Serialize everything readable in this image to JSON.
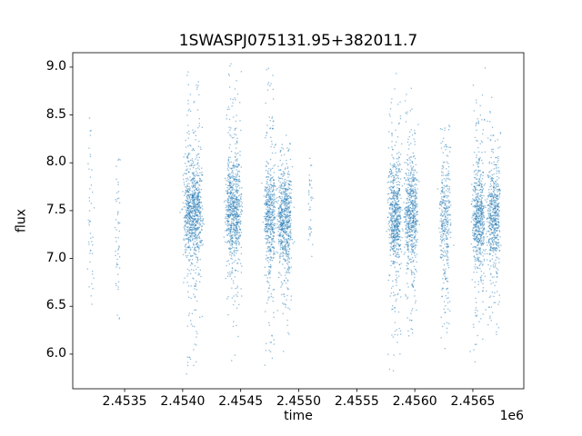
{
  "chart_data": {
    "type": "scatter",
    "title": "1SWASPJ075131.95+382011.7",
    "xlabel": "time",
    "ylabel": "flux",
    "x_offset_label": "1e6",
    "x_unit_multiplier": 1000000,
    "xlim": [
      2.453053,
      2.456939
    ],
    "ylim": [
      5.638,
      9.151
    ],
    "xticks": [
      2.4535,
      2.454,
      2.4545,
      2.455,
      2.4555,
      2.456,
      2.4565
    ],
    "xtick_labels": [
      "2.4535",
      "2.4540",
      "2.4545",
      "2.4550",
      "2.4555",
      "2.4560",
      "2.4565"
    ],
    "yticks": [
      6.0,
      6.5,
      7.0,
      7.5,
      8.0,
      8.5,
      9.0
    ],
    "ytick_labels": [
      "6.0",
      "6.5",
      "7.0",
      "7.5",
      "8.0",
      "8.5",
      "9.0"
    ],
    "grid": false,
    "legend": false,
    "marker_color": "#1f77b4",
    "marker_alpha": 0.5,
    "marker_size_px": 1.3,
    "flux_range_observed": [
      5.78,
      9.05
    ],
    "clusters": [
      {
        "x": 2.45321,
        "w": 4e-05,
        "n": 45,
        "flux_mean": 7.35,
        "flux_std": 0.45,
        "flux_tail_std": 0.8,
        "tail_frac": 0.5,
        "flux_min": 6.4,
        "flux_max": 8.5
      },
      {
        "x": 2.45344,
        "w": 4e-05,
        "n": 50,
        "flux_mean": 7.3,
        "flux_std": 0.45,
        "flux_tail_std": 0.8,
        "tail_frac": 0.5,
        "flux_min": 6.3,
        "flux_max": 8.2
      },
      {
        "x": 2.45409,
        "w": 0.00013,
        "n": 900,
        "flux_mean": 7.5,
        "flux_std": 0.24,
        "flux_tail_std": 0.75,
        "tail_frac": 0.28,
        "flux_min": 5.78,
        "flux_max": 9.0
      },
      {
        "x": 2.45444,
        "w": 0.00011,
        "n": 750,
        "flux_mean": 7.5,
        "flux_std": 0.24,
        "flux_tail_std": 0.75,
        "tail_frac": 0.28,
        "flux_min": 5.9,
        "flux_max": 9.05
      },
      {
        "x": 2.45475,
        "w": 8e-05,
        "n": 500,
        "flux_mean": 7.45,
        "flux_std": 0.25,
        "flux_tail_std": 0.8,
        "tail_frac": 0.3,
        "flux_min": 5.8,
        "flux_max": 9.0
      },
      {
        "x": 2.45488,
        "w": 0.0001,
        "n": 650,
        "flux_mean": 7.4,
        "flux_std": 0.25,
        "flux_tail_std": 0.6,
        "tail_frac": 0.25,
        "flux_min": 6.0,
        "flux_max": 8.3
      },
      {
        "x": 2.4551,
        "w": 3e-05,
        "n": 35,
        "flux_mean": 7.6,
        "flux_std": 0.25,
        "flux_tail_std": 0.4,
        "tail_frac": 0.3,
        "flux_min": 6.9,
        "flux_max": 8.05
      },
      {
        "x": 2.45583,
        "w": 9e-05,
        "n": 650,
        "flux_mean": 7.45,
        "flux_std": 0.25,
        "flux_tail_std": 0.8,
        "tail_frac": 0.3,
        "flux_min": 5.8,
        "flux_max": 9.0
      },
      {
        "x": 2.45597,
        "w": 9e-05,
        "n": 600,
        "flux_mean": 7.45,
        "flux_std": 0.25,
        "flux_tail_std": 0.7,
        "tail_frac": 0.28,
        "flux_min": 6.0,
        "flux_max": 8.8
      },
      {
        "x": 2.45626,
        "w": 8e-05,
        "n": 350,
        "flux_mean": 7.4,
        "flux_std": 0.28,
        "flux_tail_std": 0.75,
        "tail_frac": 0.3,
        "flux_min": 5.8,
        "flux_max": 8.4
      },
      {
        "x": 2.45655,
        "w": 9e-05,
        "n": 600,
        "flux_mean": 7.4,
        "flux_std": 0.25,
        "flux_tail_std": 0.8,
        "tail_frac": 0.3,
        "flux_min": 5.8,
        "flux_max": 9.0
      },
      {
        "x": 2.45668,
        "w": 9e-05,
        "n": 550,
        "flux_mean": 7.45,
        "flux_std": 0.25,
        "flux_tail_std": 0.7,
        "tail_frac": 0.28,
        "flux_min": 6.2,
        "flux_max": 8.7
      }
    ]
  }
}
